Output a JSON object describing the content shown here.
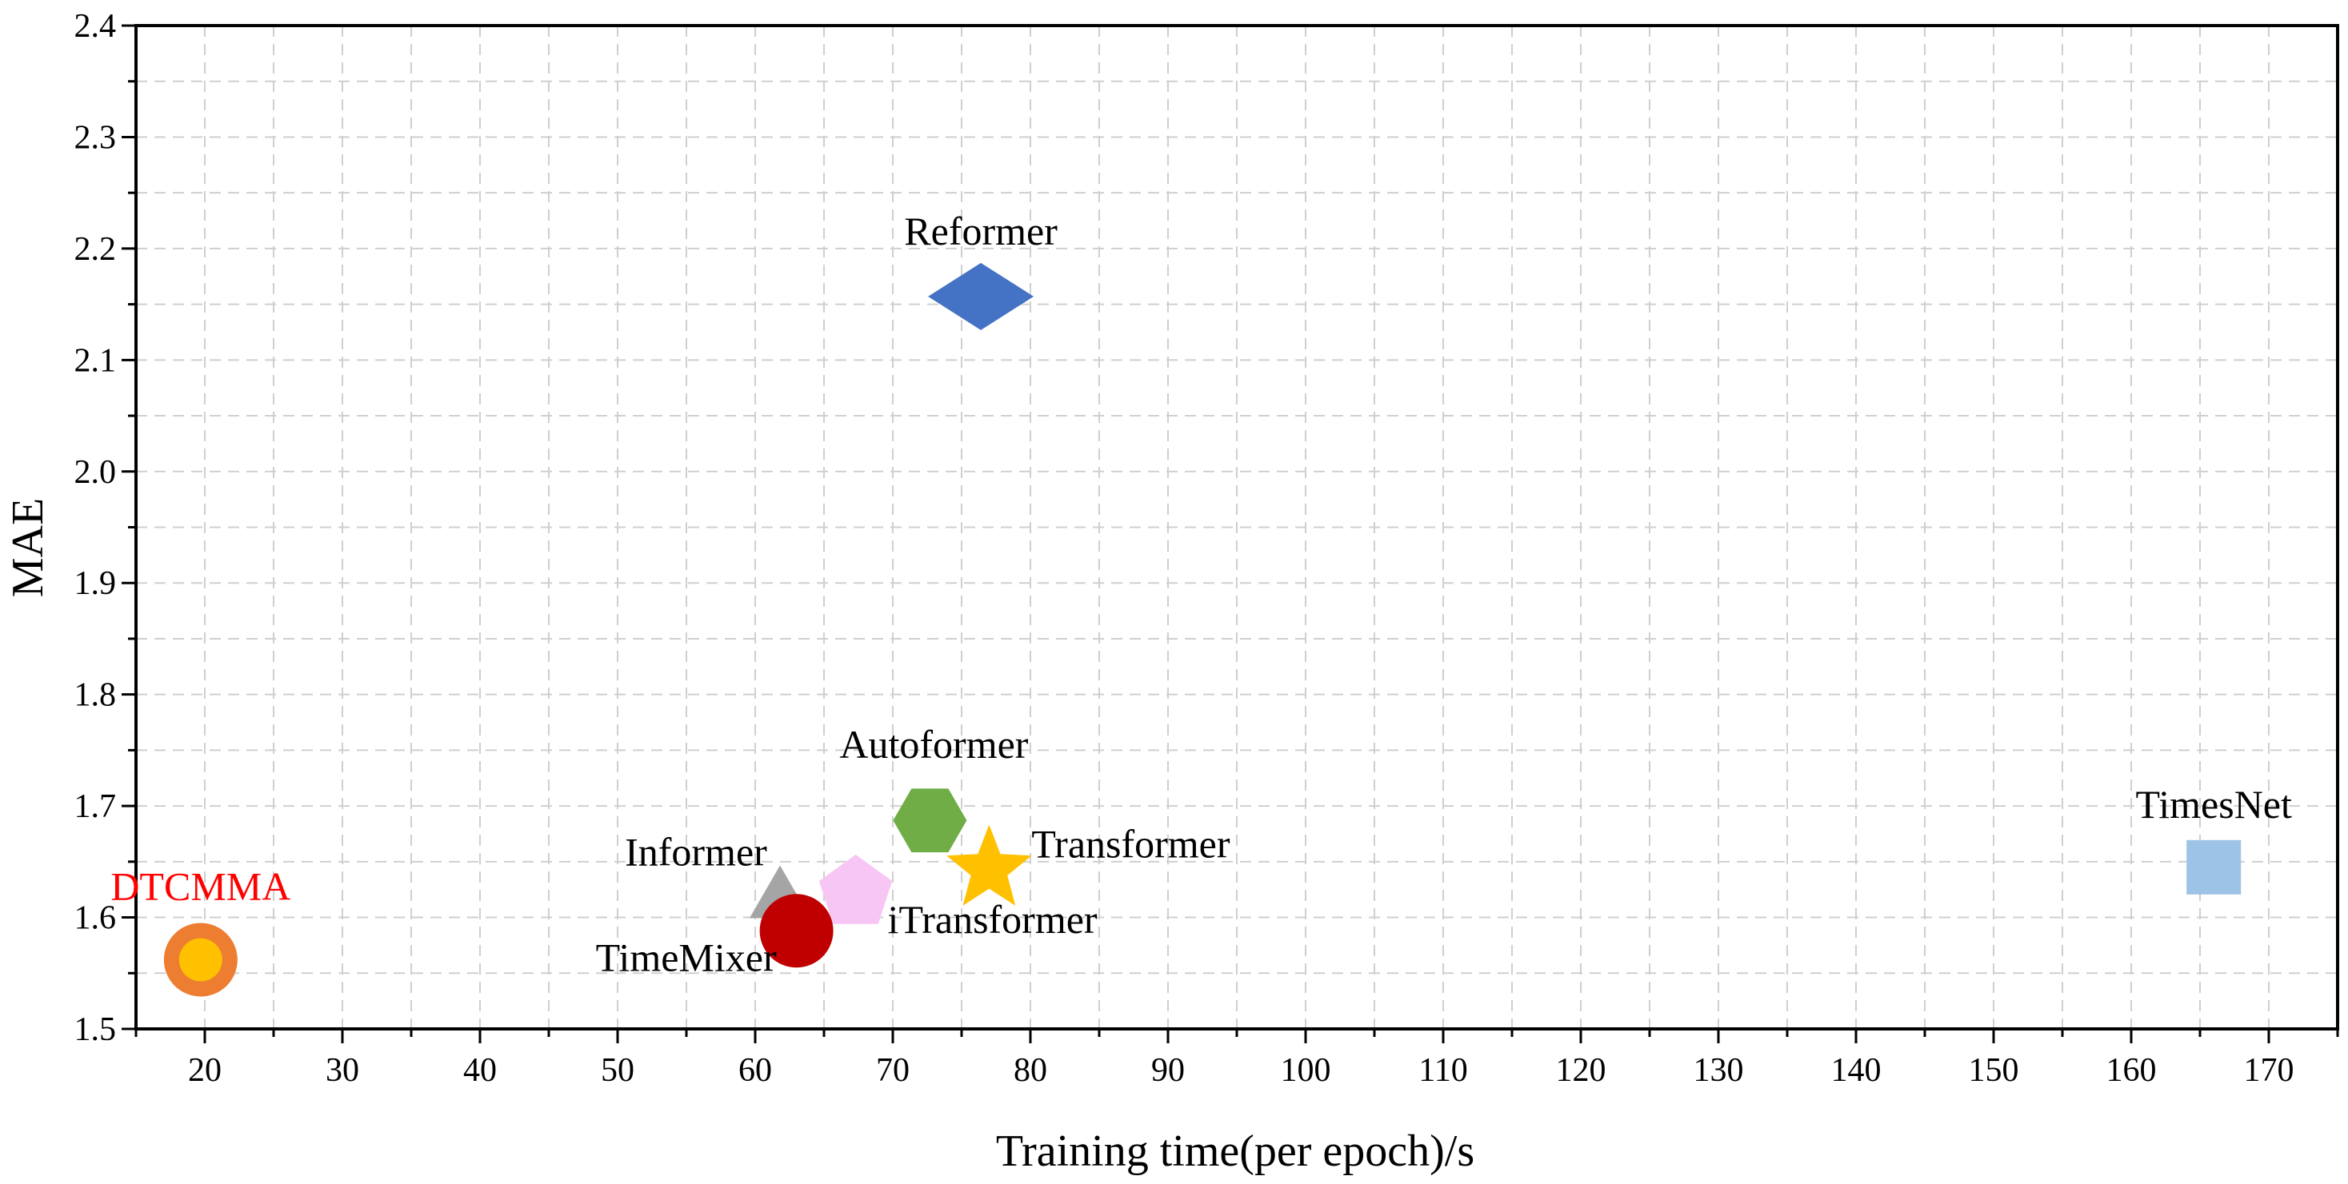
{
  "chart_data": {
    "type": "scatter",
    "title": "",
    "xlabel": "Training time(per epoch)/s",
    "ylabel": "MAE",
    "xlim": [
      15,
      175
    ],
    "ylim": [
      1.5,
      2.4
    ],
    "xticks": [
      20,
      30,
      40,
      50,
      60,
      70,
      80,
      90,
      100,
      110,
      120,
      130,
      140,
      150,
      160,
      170
    ],
    "xtick_labels": [
      "20",
      "30",
      "40",
      "50",
      "60",
      "70",
      "80",
      "90",
      "100",
      "110",
      "120",
      "130",
      "140",
      "150",
      "160",
      "170"
    ],
    "yticks": [
      1.5,
      1.6,
      1.7,
      1.8,
      1.9,
      2.0,
      2.1,
      2.2,
      2.3,
      2.4
    ],
    "ytick_labels": [
      "1.5",
      "1.6",
      "1.7",
      "1.8",
      "1.9",
      "2.0",
      "2.1",
      "2.2",
      "2.3",
      "2.4"
    ],
    "grid": true,
    "points": [
      {
        "label": "DTCMMA",
        "x": 19.7,
        "y": 1.562,
        "marker": "ring",
        "color": "#ED7D31",
        "inner_color": "#FFC000",
        "label_color": "#FF0000"
      },
      {
        "label": "Informer",
        "x": 61.8,
        "y": 1.618,
        "marker": "triangle",
        "color": "#A5A5A5",
        "label_color": "#000000"
      },
      {
        "label": "TimeMixer",
        "x": 63.0,
        "y": 1.588,
        "marker": "circle",
        "color": "#C00000",
        "label_color": "#000000"
      },
      {
        "label": "iTransformer",
        "x": 67.3,
        "y": 1.622,
        "marker": "pentagon",
        "color": "#F8C6F4",
        "label_color": "#000000"
      },
      {
        "label": "Autoformer",
        "x": 72.7,
        "y": 1.687,
        "marker": "hexagon",
        "color": "#70AD47",
        "label_color": "#000000"
      },
      {
        "label": "Transformer",
        "x": 77.0,
        "y": 1.643,
        "marker": "star",
        "color": "#FFC000",
        "label_color": "#000000"
      },
      {
        "label": "Reformer",
        "x": 76.4,
        "y": 2.157,
        "marker": "diamond",
        "color": "#4472C4",
        "label_color": "#000000"
      },
      {
        "label": "TimesNet",
        "x": 166.0,
        "y": 1.645,
        "marker": "square",
        "color": "#9DC3E6",
        "label_color": "#000000"
      }
    ]
  }
}
